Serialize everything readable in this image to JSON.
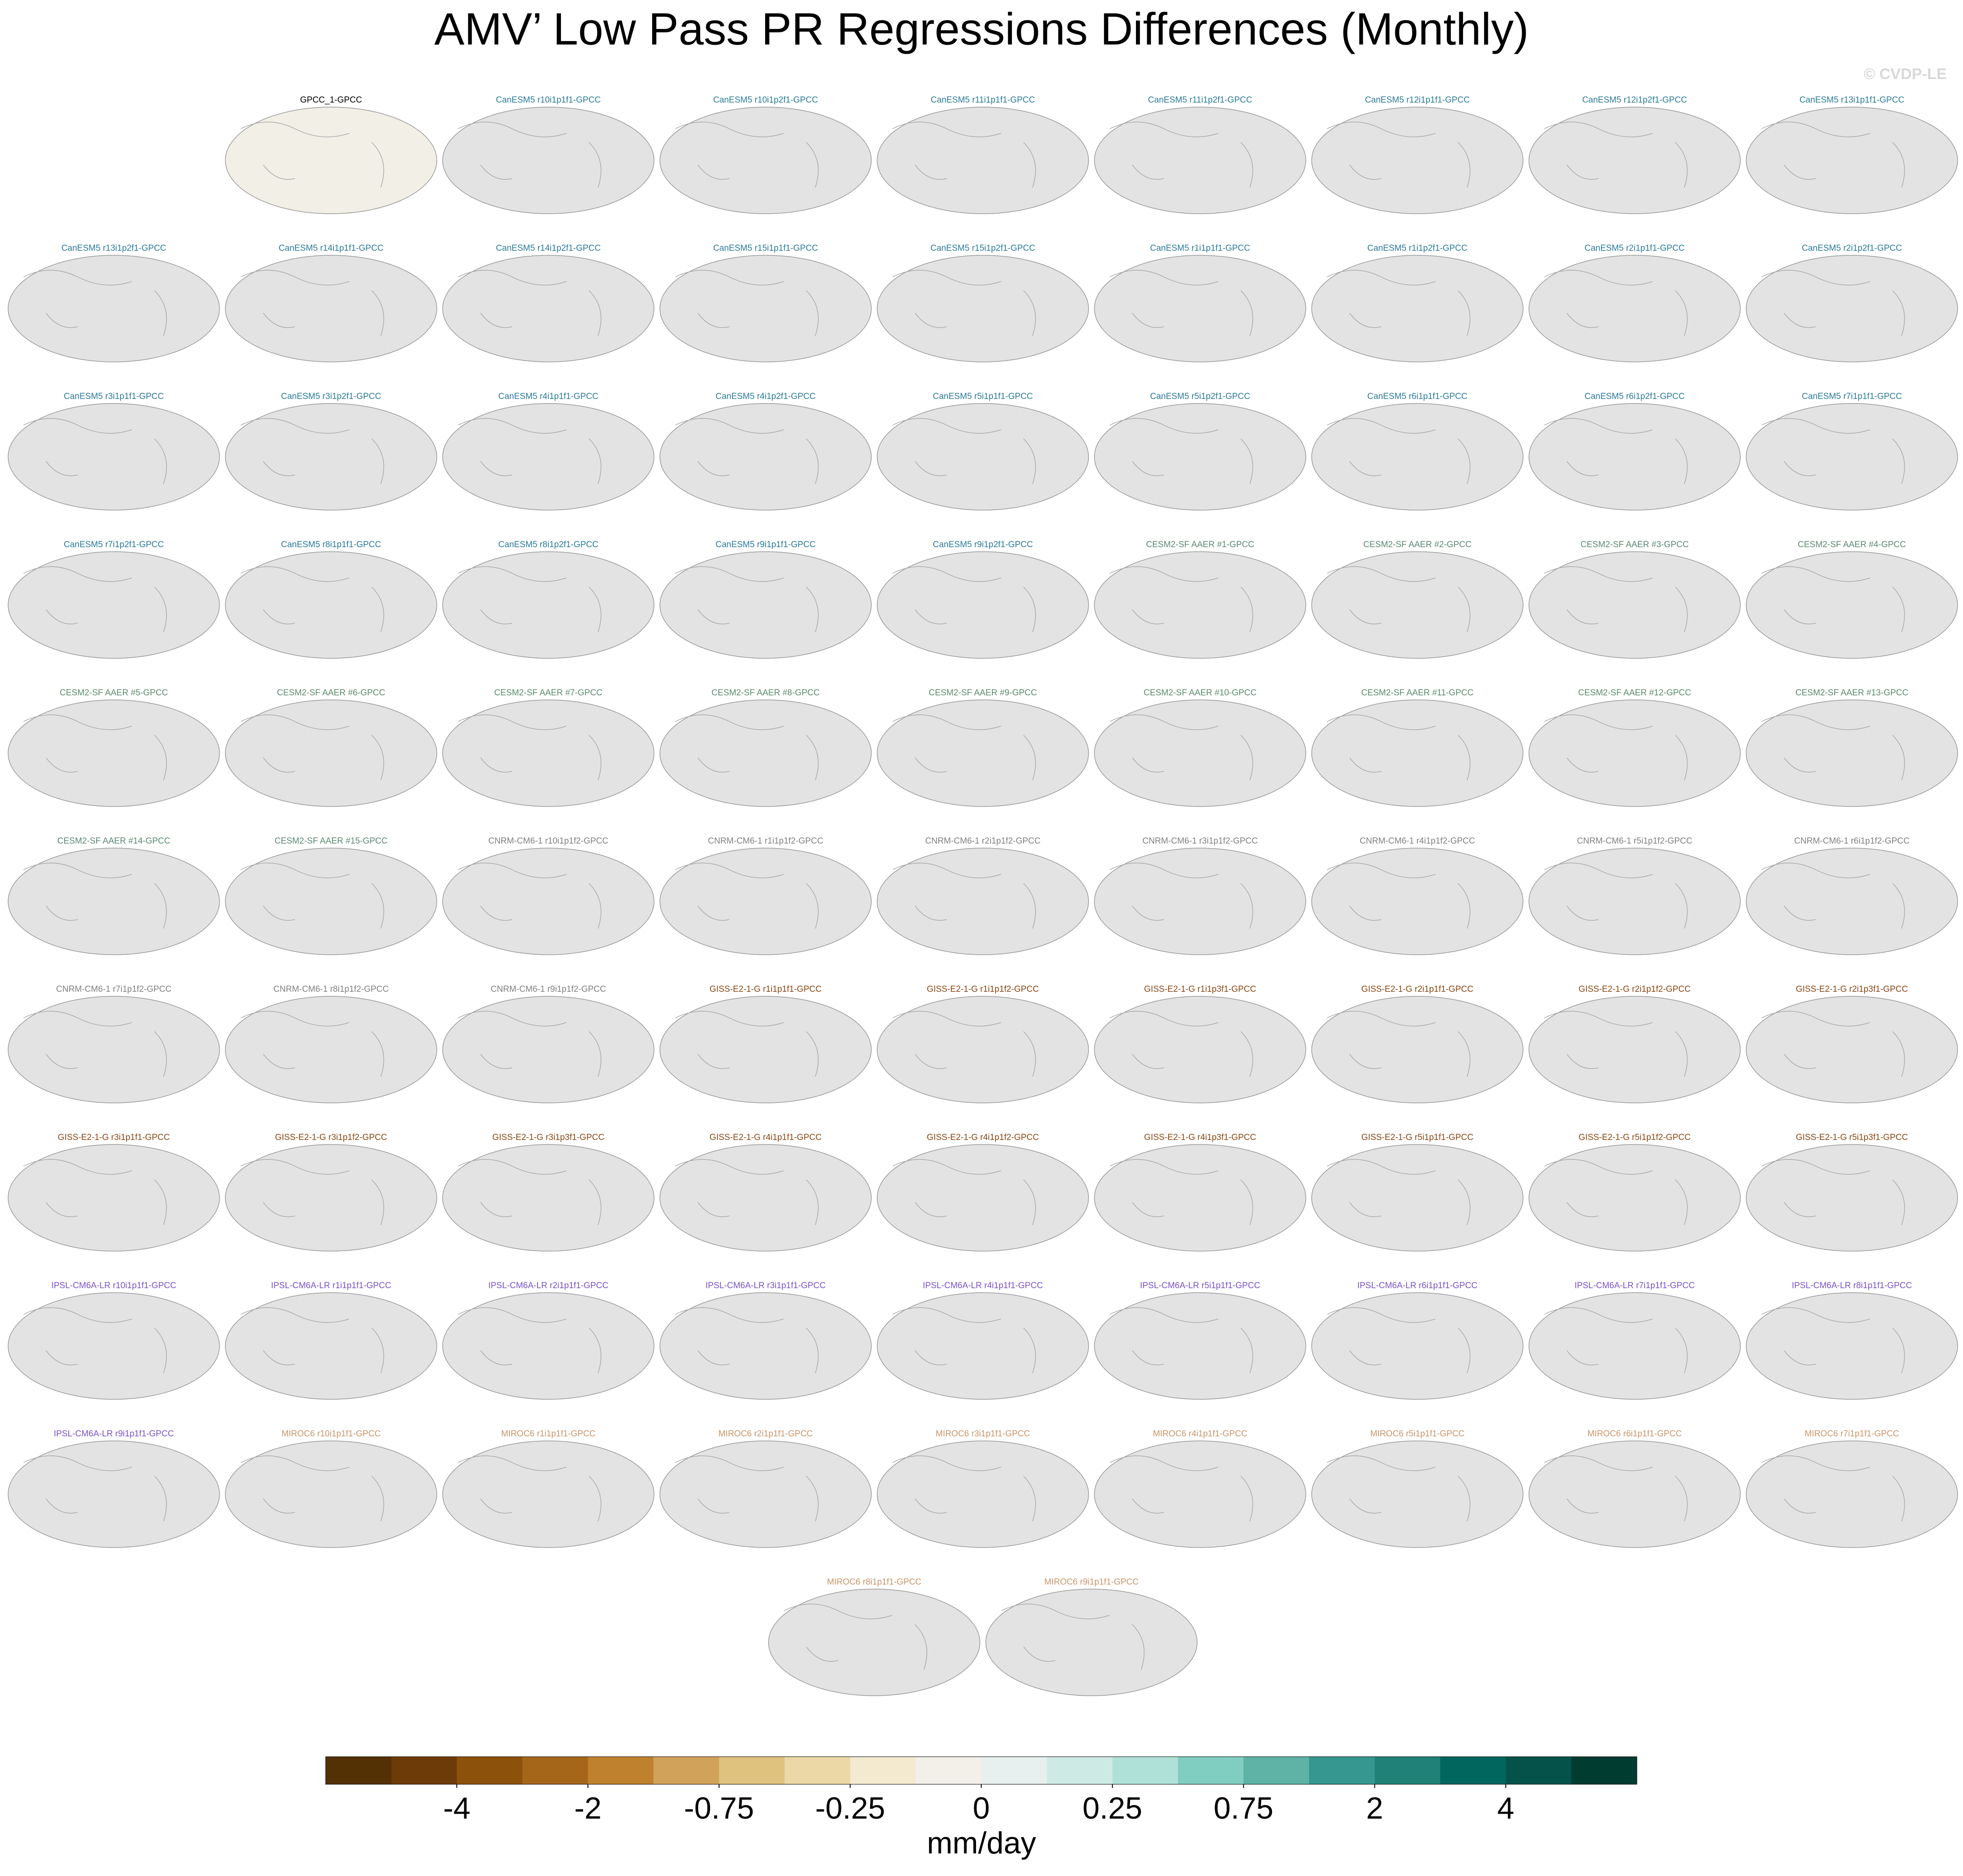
{
  "title": "AMV’ Low Pass PR Regressions Differences (Monthly)",
  "watermark": "© CVDP-LE",
  "groups": [
    {
      "color": "#000000",
      "panels": [
        "GPCC_1-GPCC"
      ]
    },
    {
      "color": "#2b7a99",
      "panels": [
        "CanESM5 r10i1p1f1-GPCC",
        "CanESM5 r10i1p2f1-GPCC",
        "CanESM5 r11i1p1f1-GPCC",
        "CanESM5 r11i1p2f1-GPCC",
        "CanESM5 r12i1p1f1-GPCC",
        "CanESM5 r12i1p2f1-GPCC",
        "CanESM5 r13i1p1f1-GPCC",
        "CanESM5 r13i1p2f1-GPCC",
        "CanESM5 r14i1p1f1-GPCC",
        "CanESM5 r14i1p2f1-GPCC",
        "CanESM5 r15i1p1f1-GPCC",
        "CanESM5 r15i1p2f1-GPCC",
        "CanESM5 r1i1p1f1-GPCC",
        "CanESM5 r1i1p2f1-GPCC",
        "CanESM5 r2i1p1f1-GPCC",
        "CanESM5 r2i1p2f1-GPCC",
        "CanESM5 r3i1p1f1-GPCC",
        "CanESM5 r3i1p2f1-GPCC",
        "CanESM5 r4i1p1f1-GPCC",
        "CanESM5 r4i1p2f1-GPCC",
        "CanESM5 r5i1p1f1-GPCC",
        "CanESM5 r5i1p2f1-GPCC",
        "CanESM5 r6i1p1f1-GPCC",
        "CanESM5 r6i1p2f1-GPCC",
        "CanESM5 r7i1p1f1-GPCC",
        "CanESM5 r7i1p2f1-GPCC",
        "CanESM5 r8i1p1f1-GPCC",
        "CanESM5 r8i1p2f1-GPCC",
        "CanESM5 r9i1p1f1-GPCC",
        "CanESM5 r9i1p2f1-GPCC"
      ]
    },
    {
      "color": "#5a8a6c",
      "panels": [
        "CESM2-SF AAER #1-GPCC",
        "CESM2-SF AAER #2-GPCC",
        "CESM2-SF AAER #3-GPCC",
        "CESM2-SF AAER #4-GPCC",
        "CESM2-SF AAER #5-GPCC",
        "CESM2-SF AAER #6-GPCC",
        "CESM2-SF AAER #7-GPCC",
        "CESM2-SF AAER #8-GPCC",
        "CESM2-SF AAER #9-GPCC",
        "CESM2-SF AAER #10-GPCC",
        "CESM2-SF AAER #11-GPCC",
        "CESM2-SF AAER #12-GPCC",
        "CESM2-SF AAER #13-GPCC",
        "CESM2-SF AAER #14-GPCC",
        "CESM2-SF AAER #15-GPCC"
      ]
    },
    {
      "color": "#808080",
      "panels": [
        "CNRM-CM6-1 r10i1p1f2-GPCC",
        "CNRM-CM6-1 r1i1p1f2-GPCC",
        "CNRM-CM6-1 r2i1p1f2-GPCC",
        "CNRM-CM6-1 r3i1p1f2-GPCC",
        "CNRM-CM6-1 r4i1p1f2-GPCC",
        "CNRM-CM6-1 r5i1p1f2-GPCC",
        "CNRM-CM6-1 r6i1p1f2-GPCC",
        "CNRM-CM6-1 r7i1p1f2-GPCC",
        "CNRM-CM6-1 r8i1p1f2-GPCC",
        "CNRM-CM6-1 r9i1p1f2-GPCC"
      ]
    },
    {
      "color": "#8b4513",
      "panels": [
        "GISS-E2-1-G r1i1p1f1-GPCC",
        "GISS-E2-1-G r1i1p1f2-GPCC",
        "GISS-E2-1-G r1i1p3f1-GPCC",
        "GISS-E2-1-G r2i1p1f1-GPCC",
        "GISS-E2-1-G r2i1p1f2-GPCC",
        "GISS-E2-1-G r2i1p3f1-GPCC",
        "GISS-E2-1-G r3i1p1f1-GPCC",
        "GISS-E2-1-G r3i1p1f2-GPCC",
        "GISS-E2-1-G r3i1p3f1-GPCC",
        "GISS-E2-1-G r4i1p1f1-GPCC",
        "GISS-E2-1-G r4i1p1f2-GPCC",
        "GISS-E2-1-G r4i1p3f1-GPCC",
        "GISS-E2-1-G r5i1p1f1-GPCC",
        "GISS-E2-1-G r5i1p1f2-GPCC",
        "GISS-E2-1-G r5i1p3f1-GPCC"
      ]
    },
    {
      "color": "#7b52c9",
      "panels": [
        "IPSL-CM6A-LR r10i1p1f1-GPCC",
        "IPSL-CM6A-LR r1i1p1f1-GPCC",
        "IPSL-CM6A-LR r2i1p1f1-GPCC",
        "IPSL-CM6A-LR r3i1p1f1-GPCC",
        "IPSL-CM6A-LR r4i1p1f1-GPCC",
        "IPSL-CM6A-LR r5i1p1f1-GPCC",
        "IPSL-CM6A-LR r6i1p1f1-GPCC",
        "IPSL-CM6A-LR r7i1p1f1-GPCC",
        "IPSL-CM6A-LR r8i1p1f1-GPCC",
        "IPSL-CM6A-LR r9i1p1f1-GPCC"
      ]
    },
    {
      "color": "#c9956a",
      "panels": [
        "MIROC6 r10i1p1f1-GPCC",
        "MIROC6 r1i1p1f1-GPCC",
        "MIROC6 r2i1p1f1-GPCC",
        "MIROC6 r3i1p1f1-GPCC",
        "MIROC6 r4i1p1f1-GPCC",
        "MIROC6 r5i1p1f1-GPCC",
        "MIROC6 r6i1p1f1-GPCC",
        "MIROC6 r7i1p1f1-GPCC",
        "MIROC6 r8i1p1f1-GPCC",
        "MIROC6 r9i1p1f1-GPCC"
      ]
    }
  ],
  "colorbar": {
    "colors": [
      "#543005",
      "#6d3b08",
      "#8c510a",
      "#a6661a",
      "#bf812d",
      "#d1a35a",
      "#dfc27d",
      "#ecd8a7",
      "#f4ead0",
      "#f3f0ea",
      "#e7f0ee",
      "#cdebe4",
      "#b0e1d8",
      "#80cdc1",
      "#5eb2a6",
      "#35978f",
      "#1f8177",
      "#01665e",
      "#05524a",
      "#003c30"
    ],
    "ticks": [
      -4,
      -2,
      -0.75,
      -0.25,
      0,
      0.25,
      0.75,
      2,
      4
    ],
    "label": "mm/day"
  }
}
